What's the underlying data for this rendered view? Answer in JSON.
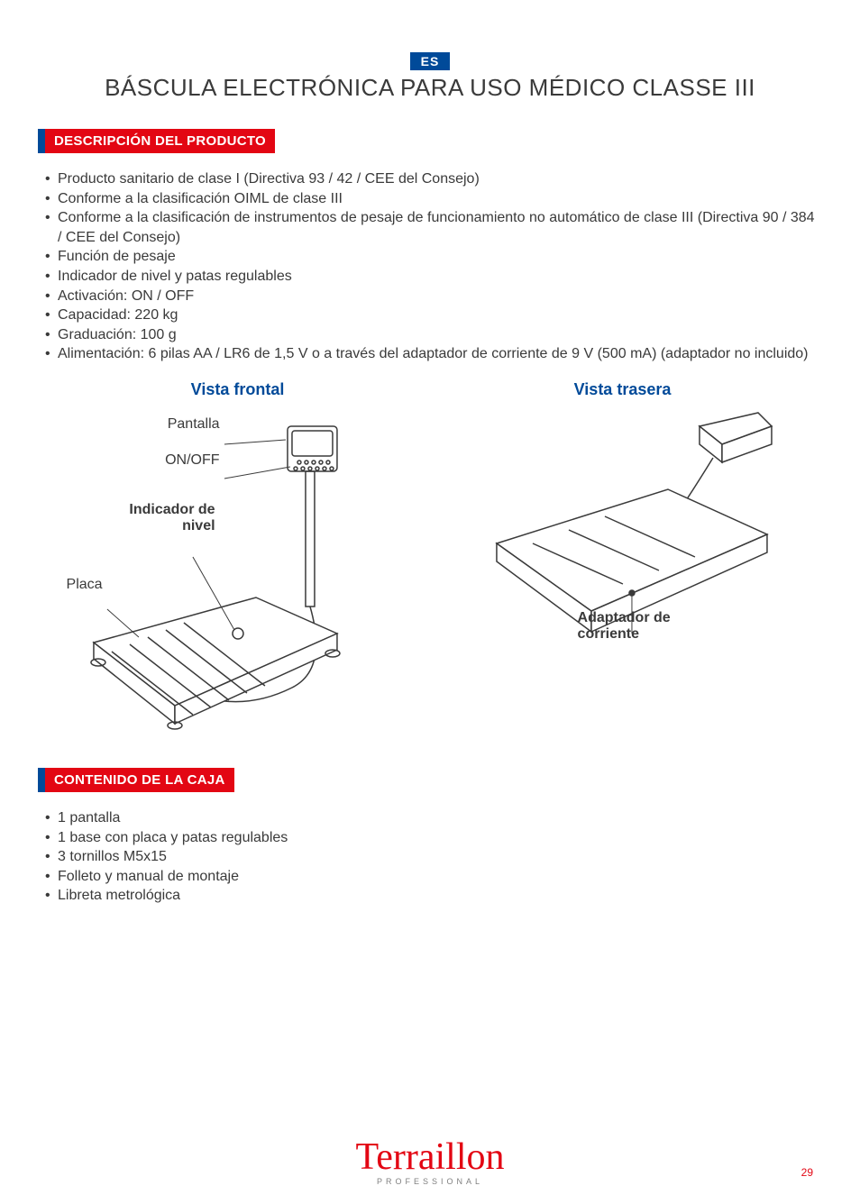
{
  "lang_badge": "ES",
  "title": "BÁSCULA ELECTRÓNICA PARA USO MÉDICO CLASSE III",
  "section1": {
    "header": "DESCRIPCIÓN DEL PRODUCTO",
    "items": [
      "Producto sanitario de clase I (Directiva 93 / 42 / CEE del Consejo)",
      "Conforme a la clasificación OIML de clase III",
      "Conforme a la clasificación de instrumentos de pesaje de funcionamiento no automático de clase III (Directiva 90 / 384 / CEE del Consejo)",
      "Función de pesaje",
      "Indicador de nivel y patas regulables",
      "Activación: ON / OFF",
      "Capacidad: 220 kg",
      "Graduación: 100 g",
      "Alimentación: 6 pilas AA / LR6 de 1,5 V o a través del adaptador de corriente de 9 V (500 mA) (adaptador no incluido)"
    ]
  },
  "diagram": {
    "front_title": "Vista frontal",
    "rear_title": "Vista trasera",
    "label_pantalla": "Pantalla",
    "label_onoff": "ON/OFF",
    "label_indicador": "Indicador de nivel",
    "label_placa": "Placa",
    "label_adaptador": "Adaptador de corriente"
  },
  "section2": {
    "header": "CONTENIDO DE LA CAJA",
    "items": [
      "1 pantalla",
      "1 base con placa y patas regulables",
      "3 tornillos M5x15",
      "Folleto y manual de montaje",
      "Libreta metrológica"
    ]
  },
  "logo": {
    "brand": "Terraillon",
    "sub": "PROFESSIONAL"
  },
  "page_number": "29",
  "colors": {
    "red": "#e30613",
    "blue": "#004a99",
    "text": "#3a3a3a",
    "gray": "#808080"
  }
}
